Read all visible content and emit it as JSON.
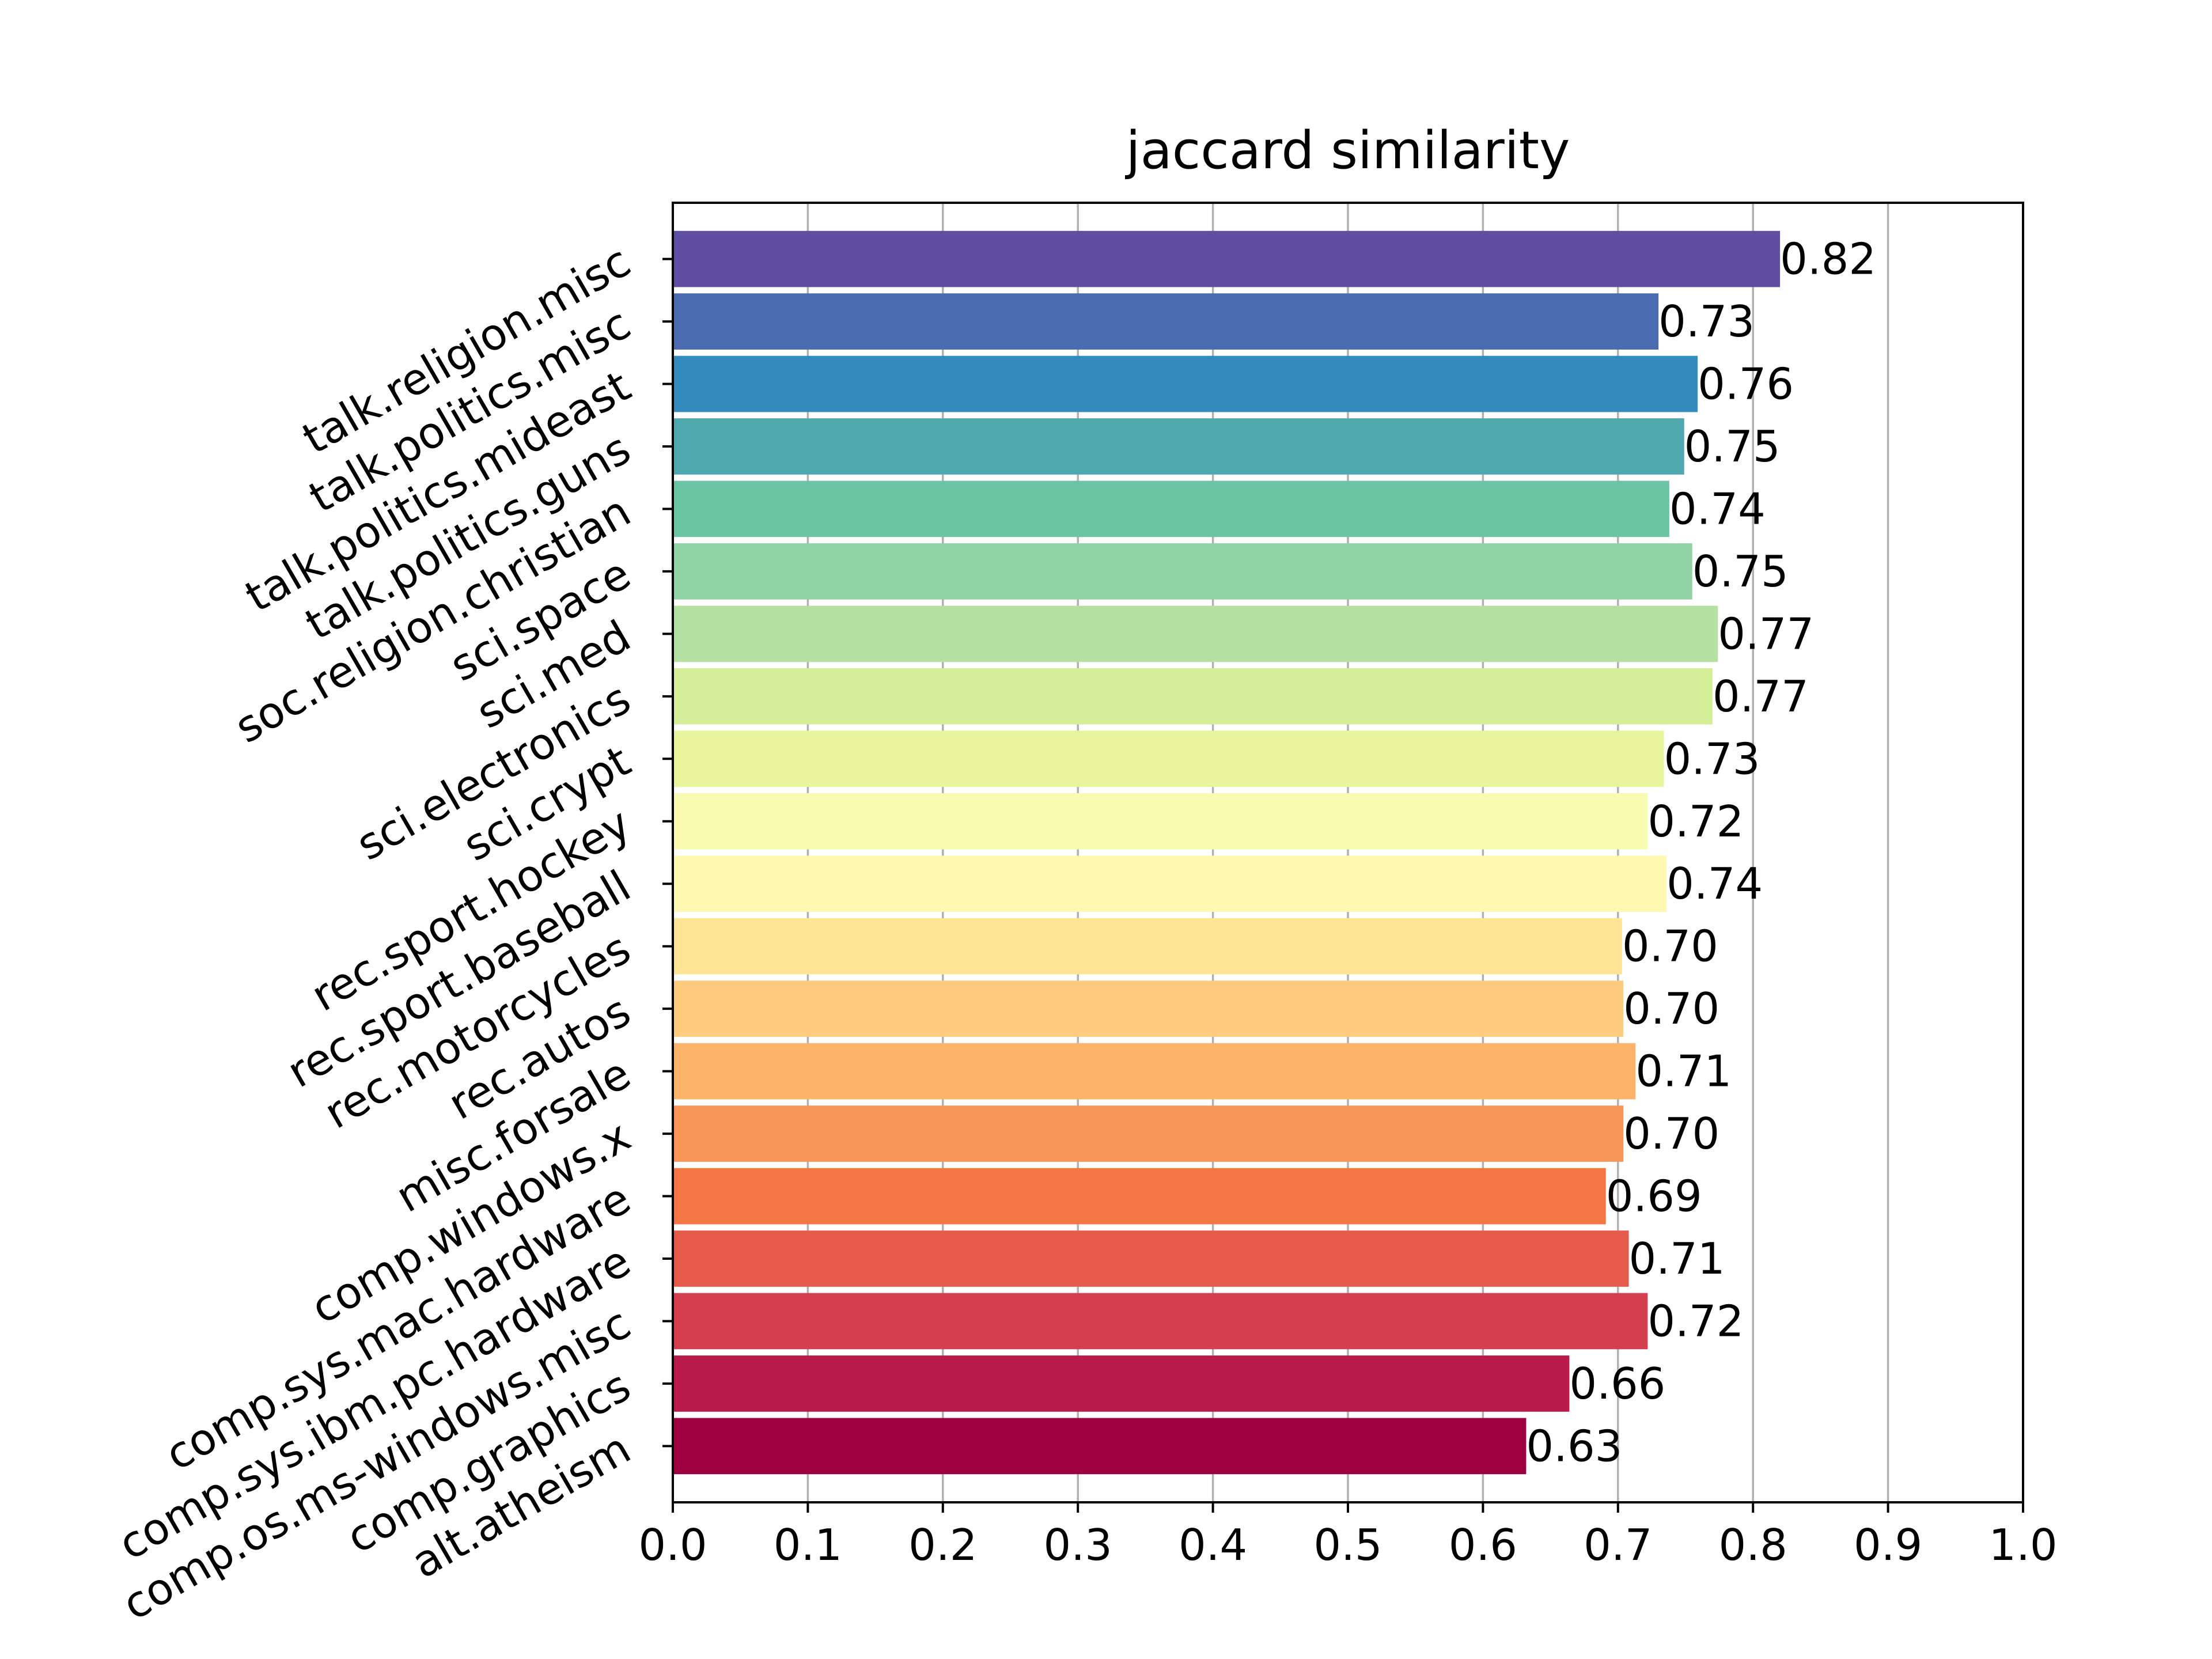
{
  "chart_data": {
    "type": "bar",
    "orientation": "horizontal",
    "title": "jaccard similarity",
    "xlabel": "",
    "ylabel": "",
    "xlim": [
      0.0,
      1.0
    ],
    "xticks": [
      0.0,
      0.1,
      0.2,
      0.3,
      0.4,
      0.5,
      0.6,
      0.7,
      0.8,
      0.9,
      1.0
    ],
    "xtick_labels": [
      "0.0",
      "0.1",
      "0.2",
      "0.3",
      "0.4",
      "0.5",
      "0.6",
      "0.7",
      "0.8",
      "0.9",
      "1.0"
    ],
    "grid": "vertical",
    "categories": [
      "alt.atheism",
      "comp.graphics",
      "comp.os.ms-windows.misc",
      "comp.sys.ibm.pc.hardware",
      "comp.sys.mac.hardware",
      "comp.windows.x",
      "misc.forsale",
      "rec.autos",
      "rec.motorcycles",
      "rec.sport.baseball",
      "rec.sport.hockey",
      "sci.crypt",
      "sci.electronics",
      "sci.med",
      "sci.space",
      "soc.religion.christian",
      "talk.politics.guns",
      "talk.politics.mideast",
      "talk.politics.misc",
      "talk.religion.misc"
    ],
    "values": [
      0.632,
      0.664,
      0.722,
      0.708,
      0.691,
      0.704,
      0.713,
      0.704,
      0.703,
      0.736,
      0.722,
      0.734,
      0.77,
      0.774,
      0.755,
      0.738,
      0.749,
      0.759,
      0.73,
      0.82
    ],
    "value_labels": [
      "0.63",
      "0.66",
      "0.72",
      "0.71",
      "0.69",
      "0.70",
      "0.71",
      "0.70",
      "0.70",
      "0.74",
      "0.72",
      "0.73",
      "0.77",
      "0.77",
      "0.75",
      "0.74",
      "0.75",
      "0.76",
      "0.73",
      "0.82"
    ],
    "colors": [
      "#9e0142",
      "#b91b4a",
      "#d43f4f",
      "#e55a4b",
      "#f47645",
      "#f99558",
      "#fcb46b",
      "#fdcc7e",
      "#fee595",
      "#fff8b0",
      "#f8fbb0",
      "#e9f59d",
      "#d4ed99",
      "#b4e0a2",
      "#91d2a4",
      "#6bc4a4",
      "#4fa8ae",
      "#348bbd",
      "#4a6bb0",
      "#5e4fa2"
    ]
  }
}
